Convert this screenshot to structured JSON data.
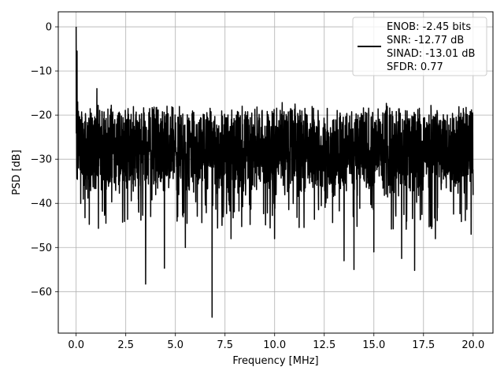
{
  "chart_data": {
    "type": "line",
    "xlabel": "Frequency [MHz]",
    "ylabel": "PSD [dB]",
    "xlim": [
      -0.9,
      21.0
    ],
    "ylim": [
      -69.4,
      3.4
    ],
    "x_ticks": [
      0.0,
      2.5,
      5.0,
      7.5,
      10.0,
      12.5,
      15.0,
      17.5,
      20.0
    ],
    "x_tick_labels": [
      "0.0",
      "2.5",
      "5.0",
      "7.5",
      "10.0",
      "12.5",
      "15.0",
      "17.5",
      "20.0"
    ],
    "y_ticks": [
      0,
      -10,
      -20,
      -30,
      -40,
      -50,
      -60
    ],
    "y_tick_labels": [
      "0",
      "−10",
      "−20",
      "−30",
      "−40",
      "−50",
      "−60"
    ],
    "grid": true,
    "legend_position": "top-right",
    "line_color": "#000000",
    "series": [
      {
        "name": "ENOB: -2.45 bits\nSNR: -12.77 dB\nSINAD: -13.01 dB\nSFDR: 0.77",
        "legend_lines": [
          "ENOB: -2.45 bits",
          "SNR: -12.77 dB",
          "SINAD: -13.01 dB",
          "SFDR: 0.77"
        ],
        "x_range": [
          0.0,
          20.0
        ],
        "noise_floor_db": -28,
        "peak_values": [
          [
            0.0,
            0.0
          ],
          [
            0.02,
            -13.0
          ],
          [
            0.05,
            -5.5
          ],
          [
            0.08,
            -17.0
          ],
          [
            0.1,
            -23.5
          ],
          [
            1.05,
            -14.0
          ],
          [
            1.5,
            -44.5
          ],
          [
            3.5,
            -58.3
          ],
          [
            4.45,
            -54.7
          ],
          [
            5.5,
            -50.0
          ],
          [
            6.85,
            -65.8
          ],
          [
            7.8,
            -48.0
          ],
          [
            10.0,
            -48.0
          ],
          [
            13.5,
            -53.0
          ],
          [
            14.0,
            -55.0
          ],
          [
            15.0,
            -51.0
          ],
          [
            16.4,
            -52.5
          ],
          [
            17.05,
            -55.2
          ],
          [
            18.1,
            -48.0
          ],
          [
            19.9,
            -47.0
          ]
        ]
      }
    ]
  }
}
